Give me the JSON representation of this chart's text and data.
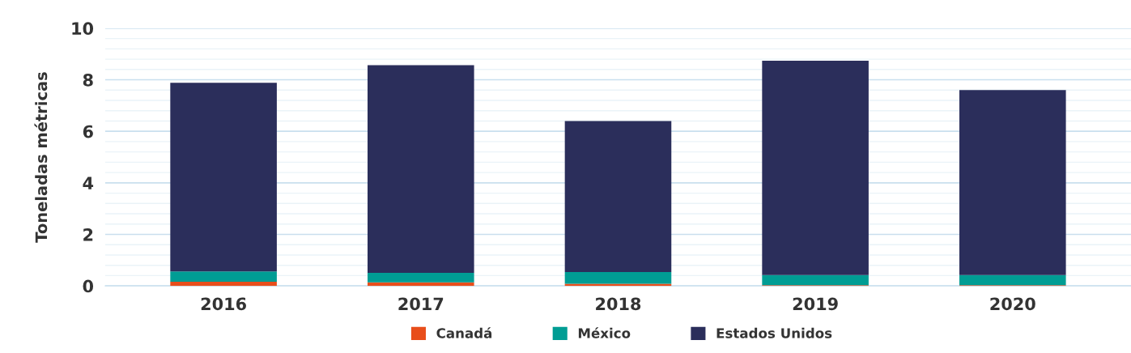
{
  "chart_data": {
    "type": "bar",
    "stacked": true,
    "ylabel": "Toneladas métricas",
    "categories": [
      "2016",
      "2017",
      "2018",
      "2019",
      "2020"
    ],
    "series": [
      {
        "name": "Canadá",
        "color": "#e84e1b",
        "values": [
          0.16,
          0.14,
          0.08,
          0.03,
          0.03
        ]
      },
      {
        "name": "México",
        "color": "#009d94",
        "values": [
          0.4,
          0.37,
          0.46,
          0.39,
          0.39
        ]
      },
      {
        "name": "Estados Unidos",
        "color": "#2b2e5b",
        "values": [
          7.32,
          8.06,
          5.86,
          8.32,
          7.18
        ]
      }
    ],
    "ylim": [
      0,
      10
    ],
    "yticks": [
      0,
      2,
      4,
      6,
      8,
      10
    ],
    "grid": "y",
    "legend": "bottom"
  }
}
